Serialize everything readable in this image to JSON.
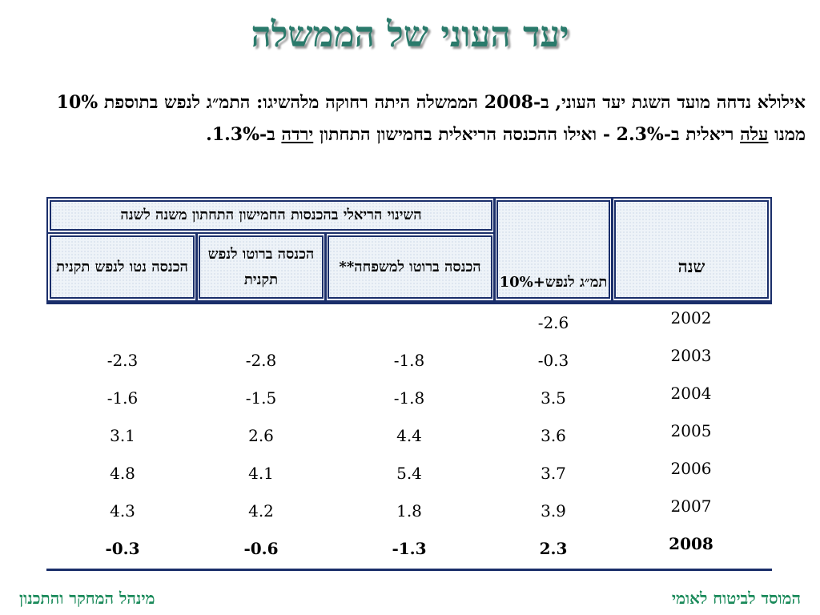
{
  "title": "יעד העוני של הממשלה",
  "paragraph": {
    "part1": "אילולא נדחה מועד השגת יעד העוני, ב-2008 הממשלה היתה רחוקה מלהשיגו:  התמ״ג לנפש בתוספת 10% ממנו ",
    "underline1": "עלה",
    "part2": " ריאלית ב-2.3% - ואילו ההכנסה הריאלית בחמישון התחתון ",
    "underline2": "ירדה",
    "part3": " ב-1.3%."
  },
  "table": {
    "group_header": "השינוי הריאלי בהכנסות החמישון התחתון משנה לשנה",
    "col_year": "שנה",
    "col_gdp": "תמ״ג לנפש+10%",
    "col_family": "הכנסה ברוטו למשפחה**",
    "col_gross": "הכנסה ברוטו לנפש תקנית",
    "col_net": "הכנסה נטו לנפש תקנית",
    "rows": [
      {
        "year": "2002",
        "gdp": "-2.6",
        "family": "",
        "gross": "",
        "net": ""
      },
      {
        "year": "2003",
        "gdp": "-0.3",
        "family": "-1.8",
        "gross": "-2.8",
        "net": "-2.3"
      },
      {
        "year": "2004",
        "gdp": "3.5",
        "family": "-1.8",
        "gross": "-1.5",
        "net": "-1.6"
      },
      {
        "year": "2005",
        "gdp": "3.6",
        "family": "4.4",
        "gross": "2.6",
        "net": "3.1"
      },
      {
        "year": "2006",
        "gdp": "3.7",
        "family": "5.4",
        "gross": "4.1",
        "net": "4.8"
      },
      {
        "year": "2007",
        "gdp": "3.9",
        "family": "1.8",
        "gross": "4.2",
        "net": "4.3"
      },
      {
        "year": "2008",
        "gdp": "2.3",
        "family": "-1.3",
        "gross": "-0.6",
        "net": "-0.3",
        "bold": true
      }
    ]
  },
  "footer": {
    "right": "המוסד לביטוח לאומי",
    "left": "מינהל המחקר והתכנון"
  },
  "colors": {
    "title": "#2a7a6b",
    "rule": "#1a2e6a",
    "footer": "#1a8a5a"
  }
}
